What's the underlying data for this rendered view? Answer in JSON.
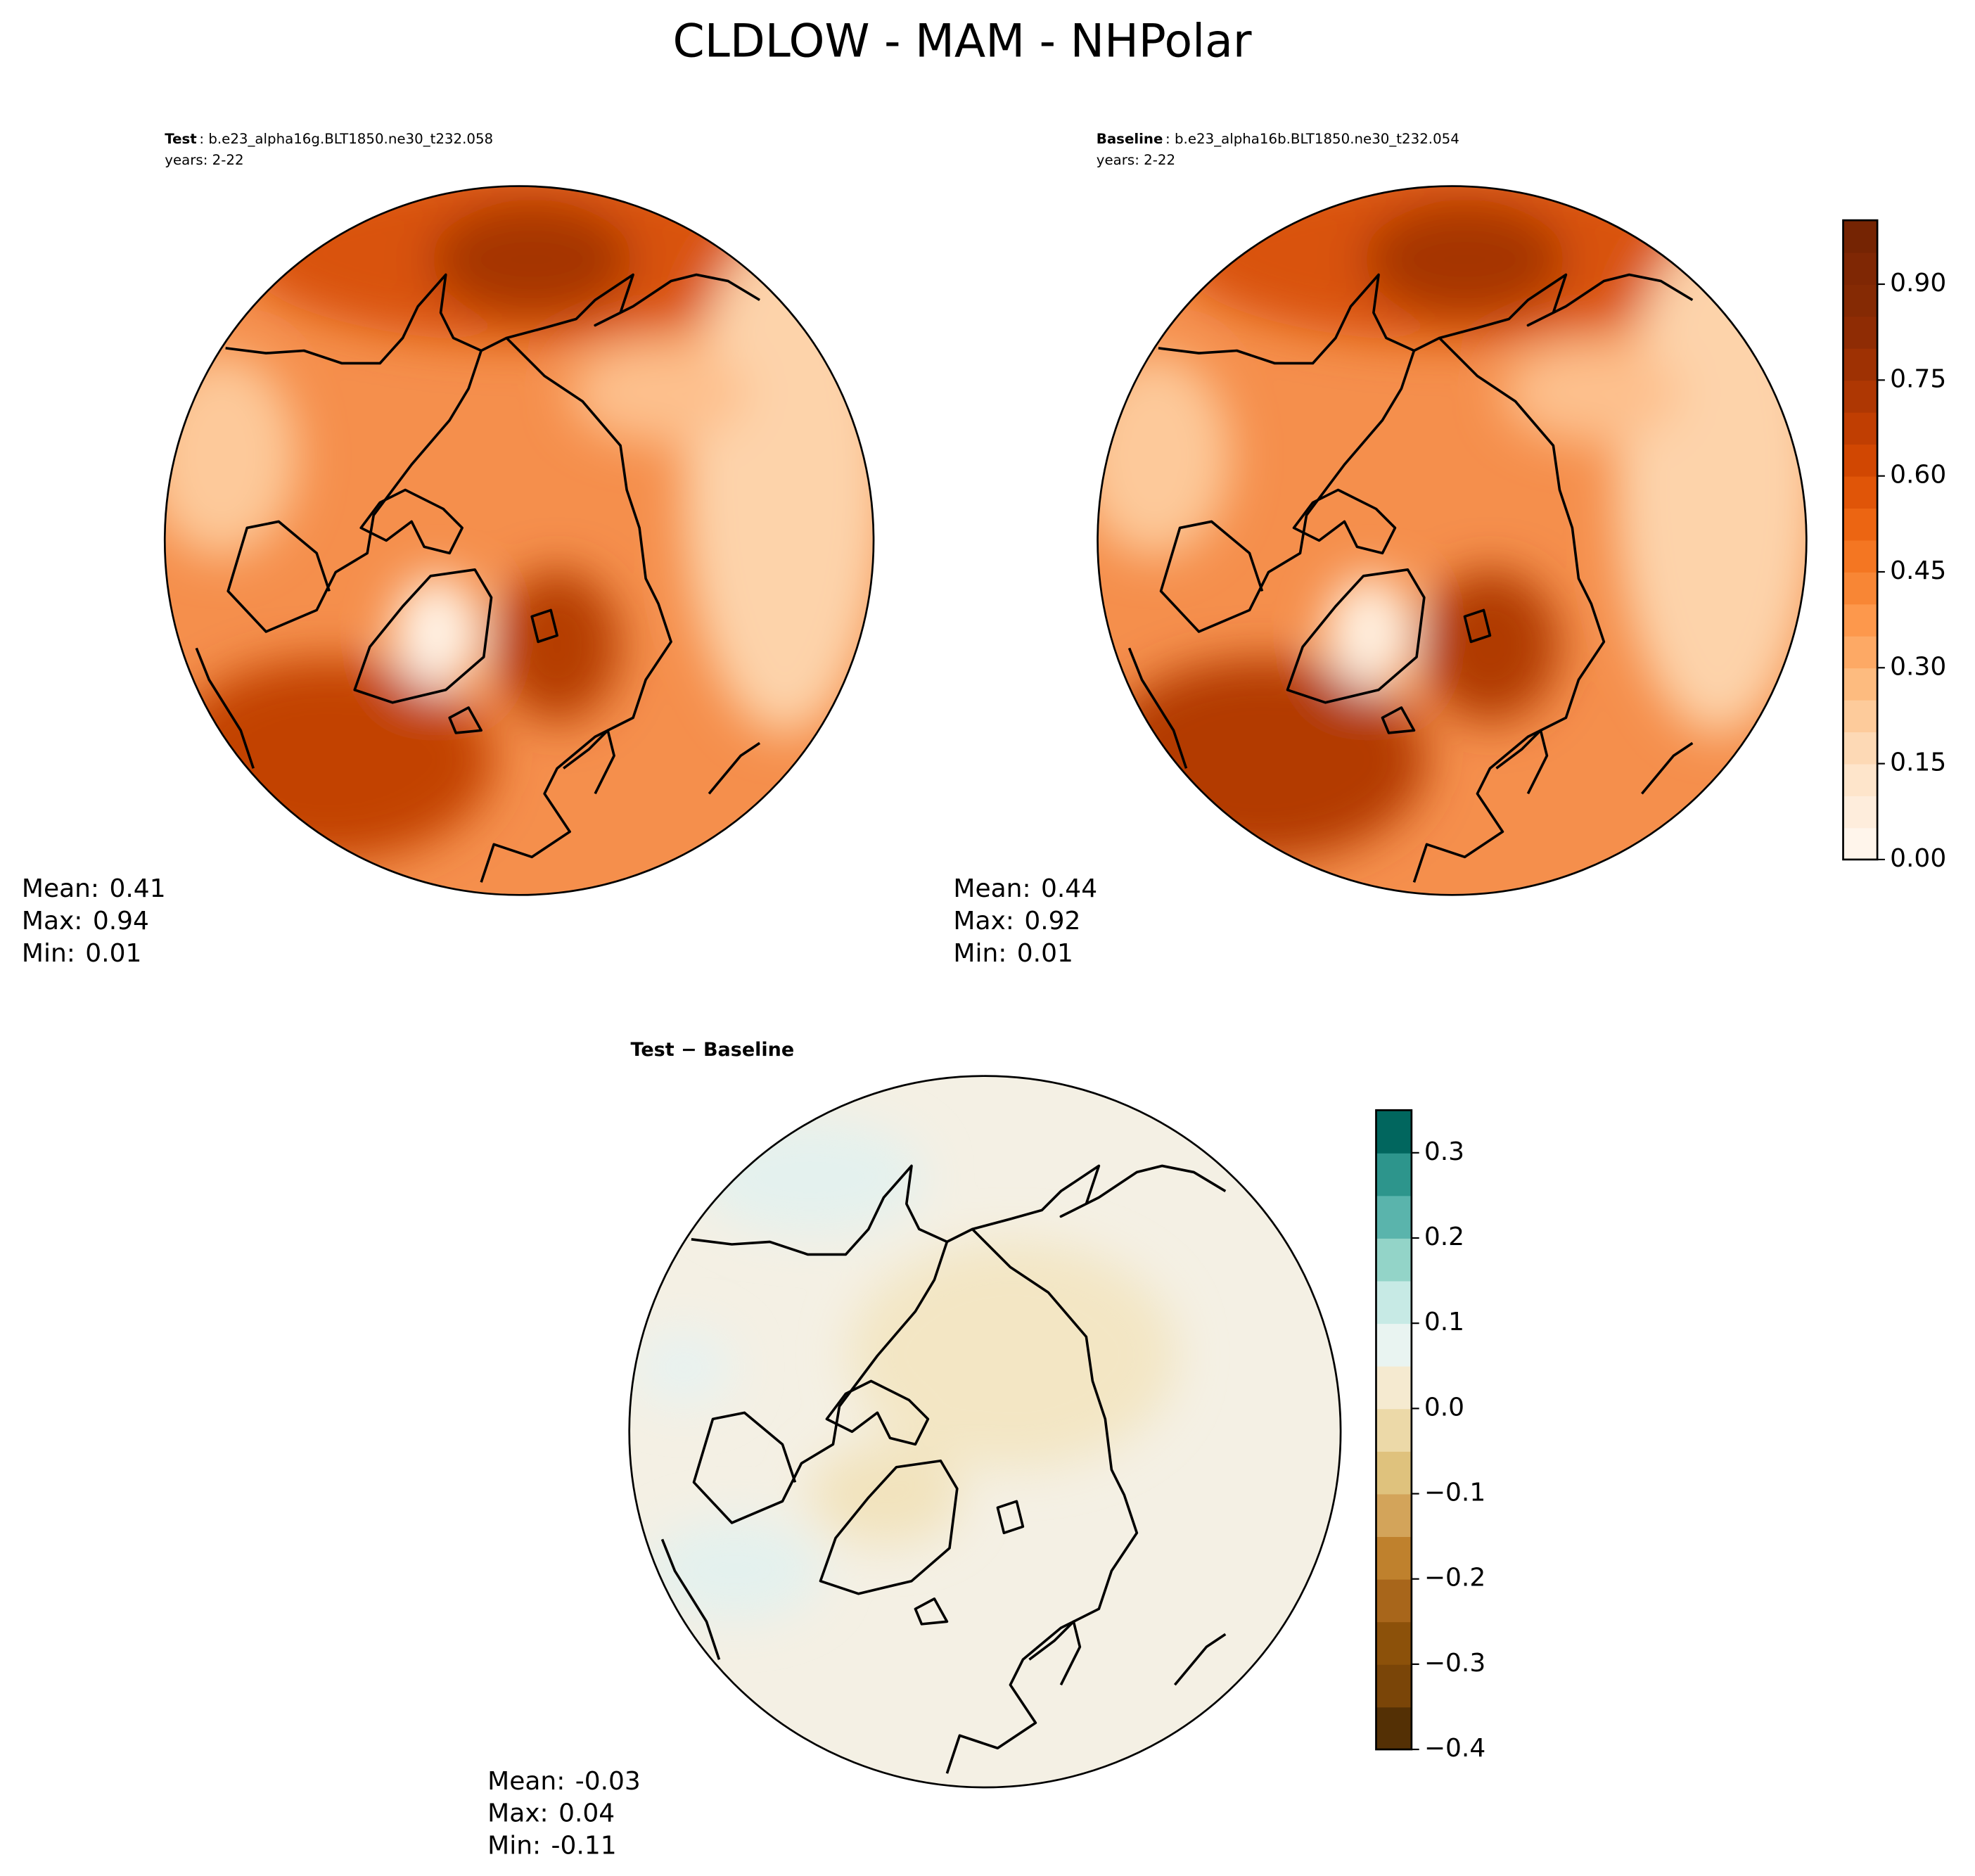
{
  "title": "CLDLOW - MAM - NHPolar",
  "panels": [
    {
      "label": "Test",
      "case": ": b.e23_alpha16g.BLT1850.ne30_t232.058",
      "years": "years: 2-22",
      "stats": [
        {
          "label": "Mean:",
          "value": 0.41
        },
        {
          "label": "Max:",
          "value": 0.94
        },
        {
          "label": "Min:",
          "value": 0.01
        }
      ]
    },
    {
      "label": "Baseline",
      "case": ": b.e23_alpha16b.BLT1850.ne30_t232.054",
      "years": "years: 2-22",
      "stats": [
        {
          "label": "Mean:",
          "value": 0.44
        },
        {
          "label": "Max:",
          "value": 0.92
        },
        {
          "label": "Min:",
          "value": 0.01
        }
      ]
    },
    {
      "label": "Test − Baseline",
      "stats": [
        {
          "label": "Mean:",
          "value": -0.03
        },
        {
          "label": "Max:",
          "value": 0.04
        },
        {
          "label": "Min:",
          "value": -0.11
        }
      ]
    }
  ],
  "colorbars": [
    {
      "ylim": [
        0,
        1
      ],
      "yticks": [
        {
          "value": 0,
          "label": "0.00"
        },
        0.15,
        {
          "value": 0.3,
          "label": "0.30"
        },
        0.45,
        {
          "value": 0.6,
          "label": "0.60"
        },
        0.75,
        {
          "value": 0.9,
          "label": "0.90"
        }
      ],
      "colors": [
        "#fff5eb",
        "#feeddc",
        "#fee5cb",
        "#fdd9b5",
        "#fdcb9b",
        "#fdbb7f",
        "#fda965",
        "#fd984c",
        "#f88635",
        "#f47622",
        "#ec6512",
        "#e05508",
        "#d14702",
        "#c03e02",
        "#ae3703",
        "#9e3103",
        "#8f2c04",
        "#852a04",
        "#7f2704",
        "#752403"
      ]
    },
    {
      "ylim": [
        -0.4,
        0.35
      ],
      "yticks": [
        {
          "value": -0.4,
          "label": "−0.4"
        },
        {
          "value": -0.3,
          "label": "−0.3"
        },
        {
          "value": -0.2,
          "label": "−0.2"
        },
        {
          "value": -0.1,
          "label": "−0.1"
        },
        {
          "value": 0,
          "label": "0.0"
        },
        0.1,
        0.2,
        0.3
      ],
      "colors": [
        "#543005",
        "#7a4508",
        "#8c510a",
        "#a8661b",
        "#bf812d",
        "#d3a45a",
        "#dfc27d",
        "#ecd9a8",
        "#f5ead0",
        "#e9f4f1",
        "#c7eae5",
        "#93d4c8",
        "#5ab4ac",
        "#2d958c",
        "#01665e"
      ]
    }
  ]
}
